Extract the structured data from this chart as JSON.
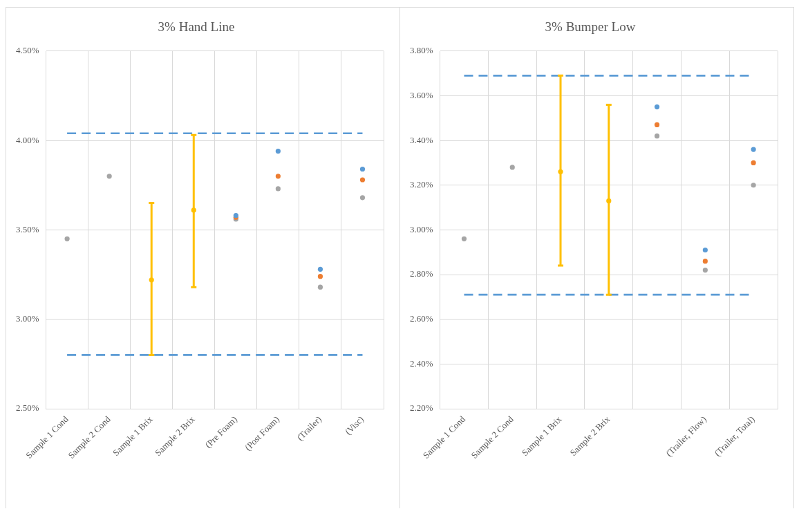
{
  "chart_data": [
    {
      "type": "scatter",
      "title": "3% Hand Line",
      "categories": [
        "Sample 1 Cond",
        "Sample 2 Cond",
        "Sample 1 Brix",
        "Sample 2 Brix",
        "(Pre Foam)",
        "(Post Foam)",
        "(Trailer)",
        "(Visc)"
      ],
      "series": [
        {
          "color": "#a5a5a5",
          "values": [
            3.45,
            3.8,
            null,
            null,
            3.56,
            3.73,
            3.18,
            3.68
          ]
        },
        {
          "color": "#ed7d31",
          "values": [
            null,
            null,
            null,
            null,
            3.57,
            3.8,
            3.24,
            3.78
          ]
        },
        {
          "color": "#5b9bd5",
          "values": [
            null,
            null,
            null,
            null,
            3.58,
            3.94,
            3.28,
            3.84
          ]
        },
        {
          "color": "#ffc000",
          "values": [
            null,
            null,
            3.22,
            3.61,
            null,
            null,
            null,
            null
          ],
          "errors": [
            null,
            null,
            [
              2.8,
              3.65
            ],
            [
              3.18,
              4.03
            ],
            null,
            null,
            null,
            null
          ]
        }
      ],
      "ylim": [
        2.5,
        4.5
      ],
      "yticks": [
        {
          "value": 2.5,
          "label": "2.50%"
        },
        {
          "value": 3.0,
          "label": "3.00%"
        },
        {
          "value": 3.5,
          "label": "3.50%"
        },
        {
          "value": 4.0,
          "label": "4.00%"
        },
        {
          "value": 4.5,
          "label": "4.50%"
        }
      ],
      "grid": true,
      "marker": "circle",
      "ref_lines": [
        {
          "axis": "y",
          "value": 4.04,
          "color": "#5b9bd5",
          "line_style": "dashed"
        },
        {
          "axis": "y",
          "value": 2.8,
          "color": "#5b9bd5",
          "line_style": "dashed"
        }
      ]
    },
    {
      "type": "scatter",
      "title": "3% Bumper Low",
      "categories": [
        "Sample 1 Cond",
        "Sample 2 Cond",
        "Sample 1 Brix",
        "Sample 2 Brix",
        null,
        "(Trailer, Flow)",
        "(Trailer, Total)"
      ],
      "series": [
        {
          "color": "#a5a5a5",
          "values": [
            2.96,
            3.28,
            null,
            null,
            3.42,
            2.82,
            3.2
          ]
        },
        {
          "color": "#ed7d31",
          "values": [
            null,
            null,
            null,
            null,
            3.47,
            2.86,
            3.3
          ]
        },
        {
          "color": "#5b9bd5",
          "values": [
            null,
            null,
            null,
            null,
            3.55,
            2.91,
            3.36
          ]
        },
        {
          "color": "#ffc000",
          "values": [
            null,
            null,
            3.26,
            3.13,
            null,
            null,
            null
          ],
          "errors": [
            null,
            null,
            [
              2.84,
              3.69
            ],
            [
              2.71,
              3.56
            ],
            null,
            null,
            null
          ]
        }
      ],
      "ylim": [
        2.2,
        3.8
      ],
      "yticks": [
        {
          "value": 2.2,
          "label": "2.20%"
        },
        {
          "value": 2.4,
          "label": "2.40%"
        },
        {
          "value": 2.6,
          "label": "2.60%"
        },
        {
          "value": 2.8,
          "label": "2.80%"
        },
        {
          "value": 3.0,
          "label": "3.00%"
        },
        {
          "value": 3.2,
          "label": "3.20%"
        },
        {
          "value": 3.4,
          "label": "3.40%"
        },
        {
          "value": 3.6,
          "label": "3.60%"
        },
        {
          "value": 3.8,
          "label": "3.80%"
        }
      ],
      "grid": true,
      "marker": "circle",
      "ref_lines": [
        {
          "axis": "y",
          "value": 3.69,
          "color": "#5b9bd5",
          "line_style": "dashed"
        },
        {
          "axis": "y",
          "value": 2.71,
          "color": "#5b9bd5",
          "line_style": "dashed"
        }
      ]
    }
  ]
}
